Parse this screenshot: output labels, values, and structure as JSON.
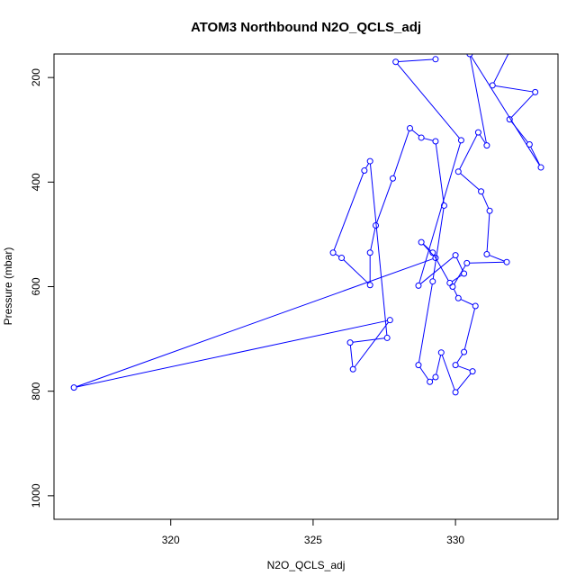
{
  "chart_data": {
    "type": "scatter",
    "title": "ATOM3 Northbound N2O_QCLS_adj",
    "xlabel": "N2O_QCLS_adj",
    "ylabel": "Pressure (mbar)",
    "xlim": [
      315.9,
      333.6
    ],
    "ylim": [
      1045,
      155
    ],
    "y_axis_inverted": true,
    "x_ticks": [
      320,
      325,
      330
    ],
    "y_ticks": [
      200,
      400,
      600,
      800,
      1000
    ],
    "grid": false,
    "legend": "none",
    "series": [
      {
        "color": "#0000ff",
        "marker": "open-circle",
        "connected": true,
        "points": [
          [
            331.9,
            150
          ],
          [
            331.3,
            215
          ],
          [
            332.8,
            228
          ],
          [
            331.9,
            280
          ],
          [
            332.6,
            328
          ],
          [
            333.0,
            372
          ],
          [
            330.5,
            155
          ],
          [
            331.1,
            330
          ],
          [
            330.8,
            305
          ],
          [
            330.1,
            380
          ],
          [
            330.9,
            418
          ],
          [
            331.2,
            455
          ],
          [
            331.1,
            538
          ],
          [
            331.8,
            553
          ],
          [
            330.4,
            555
          ],
          [
            329.9,
            600
          ],
          [
            330.1,
            622
          ],
          [
            330.7,
            637
          ],
          [
            330.3,
            725
          ],
          [
            330.0,
            750
          ],
          [
            330.6,
            762
          ],
          [
            330.0,
            802
          ],
          [
            329.5,
            726
          ],
          [
            329.3,
            773
          ],
          [
            329.1,
            782
          ],
          [
            328.7,
            750
          ],
          [
            329.2,
            590
          ],
          [
            329.6,
            445
          ],
          [
            329.3,
            322
          ],
          [
            328.8,
            315
          ],
          [
            328.4,
            297
          ],
          [
            327.8,
            393
          ],
          [
            327.2,
            483
          ],
          [
            327.0,
            535
          ],
          [
            327.0,
            597
          ],
          [
            326.0,
            545
          ],
          [
            325.7,
            535
          ],
          [
            326.8,
            378
          ],
          [
            327.0,
            360
          ],
          [
            327.6,
            698
          ],
          [
            326.3,
            707
          ],
          [
            326.4,
            758
          ],
          [
            327.7,
            664
          ],
          [
            316.6,
            793
          ],
          [
            329.3,
            545
          ],
          [
            328.8,
            515
          ],
          [
            329.2,
            535
          ],
          [
            329.8,
            593
          ],
          [
            330.3,
            575
          ],
          [
            330.0,
            540
          ],
          [
            328.7,
            598
          ],
          [
            330.2,
            320
          ],
          [
            327.9,
            170
          ],
          [
            329.3,
            165
          ]
        ]
      }
    ]
  }
}
